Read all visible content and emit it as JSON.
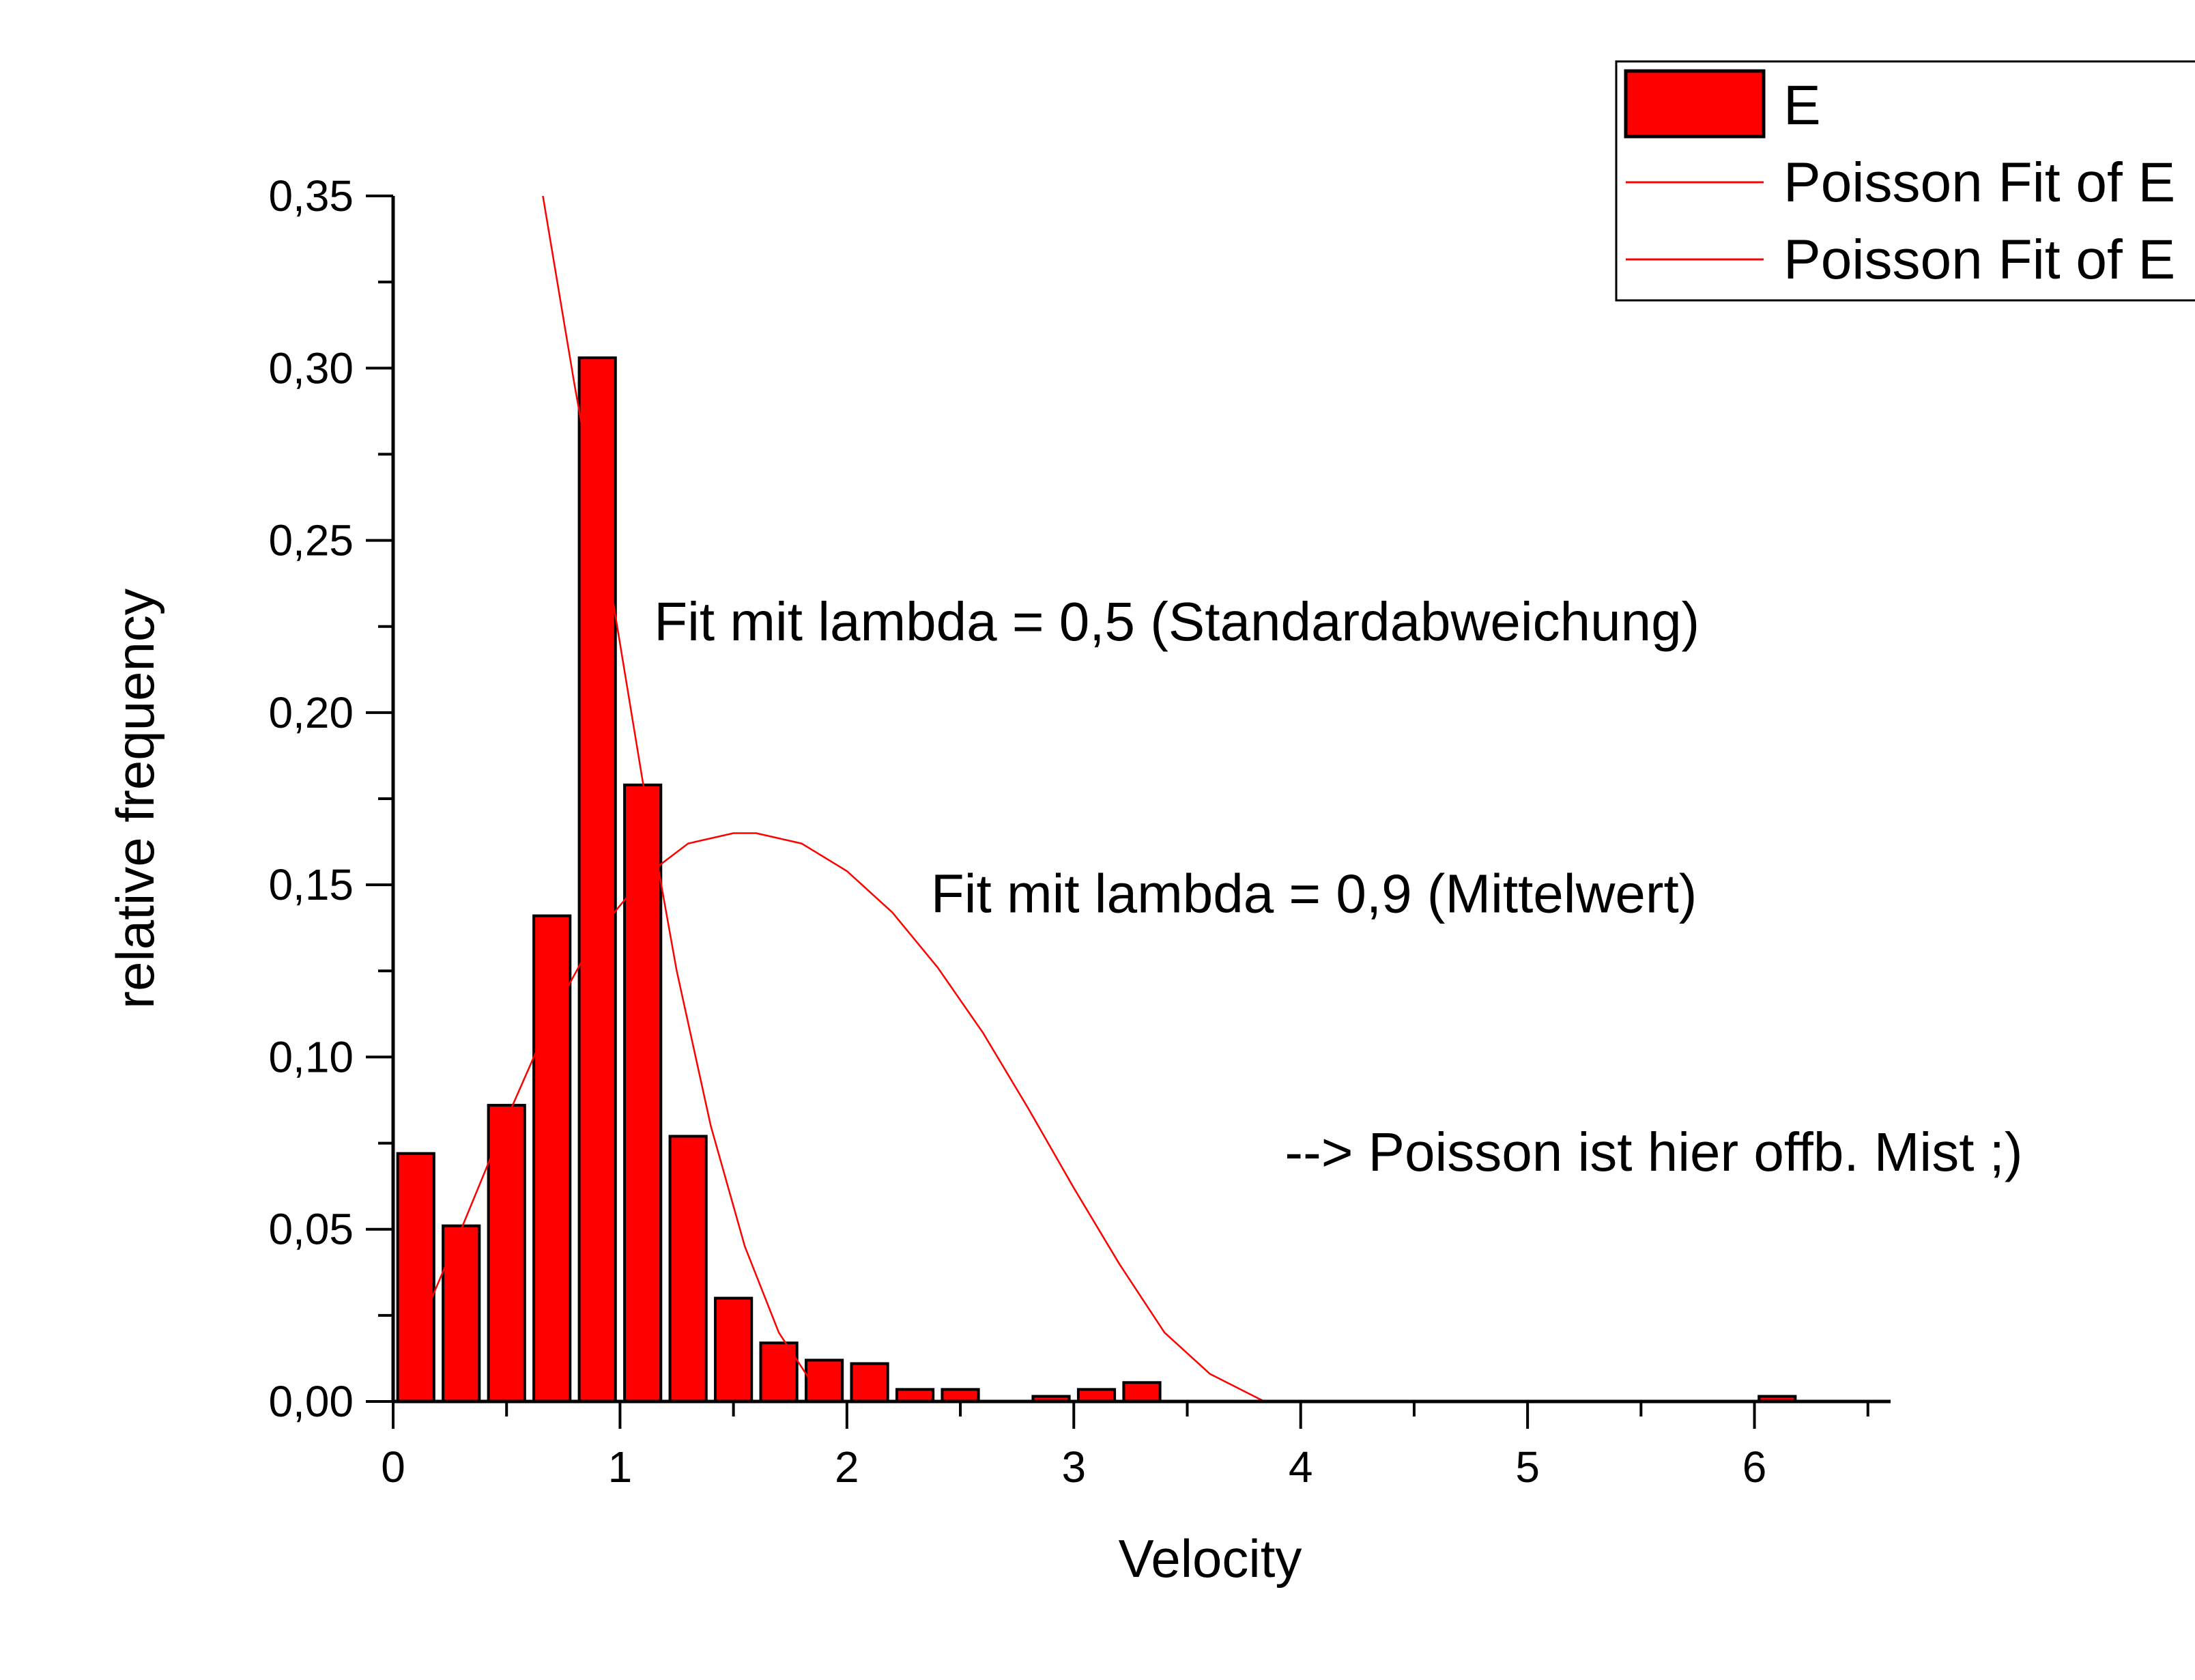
{
  "chart_data": {
    "type": "bar",
    "xlabel": "Velocity",
    "ylabel": "relative frequency",
    "xlim": [
      0,
      6.6
    ],
    "ylim": [
      0,
      0.35
    ],
    "x_ticks": [
      {
        "value": 0,
        "label": "0"
      },
      {
        "value": 1,
        "label": "1"
      },
      {
        "value": 2,
        "label": "2"
      },
      {
        "value": 3,
        "label": "3"
      },
      {
        "value": 4,
        "label": "4"
      },
      {
        "value": 5,
        "label": "5"
      },
      {
        "value": 6,
        "label": "6"
      }
    ],
    "y_ticks": [
      {
        "value": 0,
        "label": "0,00"
      },
      {
        "value": 0.05,
        "label": "0,05"
      },
      {
        "value": 0.1,
        "label": "0,10"
      },
      {
        "value": 0.15,
        "label": "0,15"
      },
      {
        "value": 0.2,
        "label": "0,20"
      },
      {
        "value": 0.25,
        "label": "0,25"
      },
      {
        "value": 0.3,
        "label": "0,30"
      },
      {
        "value": 0.35,
        "label": "0,35"
      }
    ],
    "grid": false,
    "legend_position": "top-right",
    "legend": [
      {
        "label": "E",
        "kind": "bar"
      },
      {
        "label": "Poisson Fit of E",
        "kind": "line"
      },
      {
        "label": "Poisson Fit of E",
        "kind": "line"
      }
    ],
    "bar_width": 0.16,
    "series": [
      {
        "kind": "bar",
        "color": "#ff0000",
        "edge_color": "#000000",
        "points": [
          {
            "x": 0.1,
            "y": 0.072
          },
          {
            "x": 0.3,
            "y": 0.051
          },
          {
            "x": 0.5,
            "y": 0.086
          },
          {
            "x": 0.7,
            "y": 0.141
          },
          {
            "x": 0.9,
            "y": 0.303
          },
          {
            "x": 1.1,
            "y": 0.179
          },
          {
            "x": 1.3,
            "y": 0.077
          },
          {
            "x": 1.5,
            "y": 0.03
          },
          {
            "x": 1.7,
            "y": 0.017
          },
          {
            "x": 1.9,
            "y": 0.012
          },
          {
            "x": 2.1,
            "y": 0.011
          },
          {
            "x": 2.3,
            "y": 0.0035
          },
          {
            "x": 2.5,
            "y": 0.0035
          },
          {
            "x": 2.9,
            "y": 0.0015
          },
          {
            "x": 3.1,
            "y": 0.0035
          },
          {
            "x": 3.3,
            "y": 0.0055
          },
          {
            "x": 6.1,
            "y": 0.0015
          }
        ]
      },
      {
        "kind": "line",
        "color": "#ff0000",
        "points": [
          {
            "x": 0.66,
            "y": 0.35
          },
          {
            "x": 0.8,
            "y": 0.295
          },
          {
            "x": 0.95,
            "y": 0.24
          },
          {
            "x": 1.1,
            "y": 0.18
          },
          {
            "x": 1.25,
            "y": 0.125
          },
          {
            "x": 1.4,
            "y": 0.08
          },
          {
            "x": 1.55,
            "y": 0.045
          },
          {
            "x": 1.7,
            "y": 0.02
          },
          {
            "x": 1.85,
            "y": 0.005
          },
          {
            "x": 1.95,
            "y": 0.0
          }
        ]
      },
      {
        "kind": "line",
        "color": "#ff0000",
        "points": [
          {
            "x": 0.17,
            "y": 0.03
          },
          {
            "x": 0.3,
            "y": 0.05
          },
          {
            "x": 0.5,
            "y": 0.082
          },
          {
            "x": 0.7,
            "y": 0.112
          },
          {
            "x": 0.9,
            "y": 0.136
          },
          {
            "x": 1.1,
            "y": 0.152
          },
          {
            "x": 1.3,
            "y": 0.162
          },
          {
            "x": 1.5,
            "y": 0.165
          },
          {
            "x": 1.6,
            "y": 0.165
          },
          {
            "x": 1.8,
            "y": 0.162
          },
          {
            "x": 2.0,
            "y": 0.154
          },
          {
            "x": 2.2,
            "y": 0.142
          },
          {
            "x": 2.4,
            "y": 0.126
          },
          {
            "x": 2.6,
            "y": 0.107
          },
          {
            "x": 2.8,
            "y": 0.085
          },
          {
            "x": 3.0,
            "y": 0.062
          },
          {
            "x": 3.2,
            "y": 0.04
          },
          {
            "x": 3.4,
            "y": 0.02
          },
          {
            "x": 3.6,
            "y": 0.008
          },
          {
            "x": 3.84,
            "y": 0.0
          }
        ]
      }
    ],
    "annotations": [
      {
        "text": "Fit mit lambda = 0,5 (Standardabweichung)",
        "x": 1.15,
        "y": 0.221
      },
      {
        "text": "Fit mit lambda = 0,9 (Mittelwert)",
        "x": 2.37,
        "y": 0.142
      },
      {
        "text": "--> Poisson ist hier offb. Mist ;)",
        "x": 3.93,
        "y": 0.067
      }
    ]
  }
}
